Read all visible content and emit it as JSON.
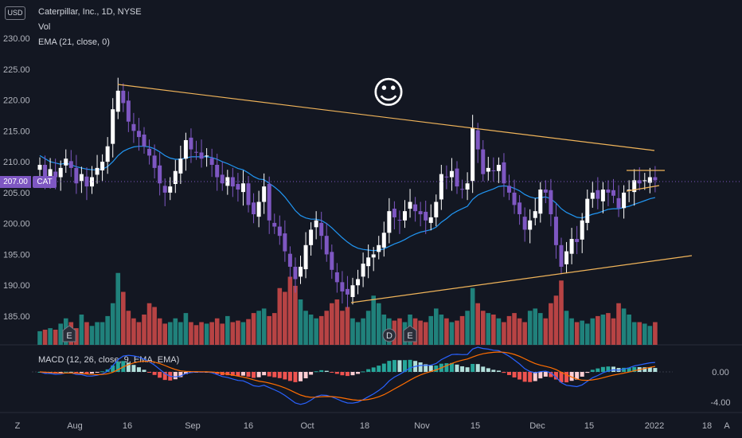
{
  "header": {
    "currency": "USD",
    "title": "Caterpillar, Inc., 1D, NYSE",
    "vol_label": "Vol",
    "ema_label": "EMA (21, close, 0)",
    "macd_label": "MACD (12, 26, close, 9, EMA, EMA)"
  },
  "price_tag": {
    "value": "207.00",
    "symbol": "CAT"
  },
  "price_axis": {
    "labels": [
      "230.00",
      "225.00",
      "220.00",
      "215.00",
      "210.00",
      "205.00",
      "200.00",
      "195.00",
      "190.00",
      "185.00"
    ],
    "values": [
      230,
      225,
      220,
      215,
      210,
      205,
      200,
      195,
      190,
      185
    ]
  },
  "macd_axis": {
    "labels": [
      "0.00",
      "-4.00"
    ],
    "values": [
      0,
      -4
    ]
  },
  "time_axis": {
    "labels": [
      "Aug",
      "16",
      "Sep",
      "16",
      "Oct",
      "18",
      "Nov",
      "15",
      "Dec",
      "15",
      "2022",
      "18"
    ]
  },
  "corner_labels": {
    "left": "Z",
    "right": "A"
  },
  "event_markers": [
    "E",
    "D",
    "E"
  ],
  "emoji": "☺",
  "colors": {
    "up": "#ffffff",
    "down": "#7e57c2",
    "ema": "#2196f3",
    "trend": "#f0b45a",
    "vol_up": "#26a69a",
    "vol_down": "#ef5350",
    "bg": "#131722"
  },
  "chart_data": {
    "type": "candlestick",
    "title": "Caterpillar, Inc., 1D, NYSE",
    "ylim": [
      183,
      232
    ],
    "closes": [
      209.5,
      207.0,
      208.8,
      207.5,
      209.0,
      210.5,
      209.0,
      206.5,
      208.0,
      206.0,
      207.5,
      209.0,
      210.0,
      212.5,
      218.5,
      221.5,
      219.5,
      216.5,
      215.0,
      214.0,
      212.5,
      211.0,
      209.0,
      206.5,
      205.0,
      206.0,
      208.5,
      210.5,
      213.5,
      212.0,
      211.5,
      210.5,
      211.0,
      209.5,
      207.5,
      206.5,
      207.5,
      206.0,
      205.5,
      206.5,
      203.0,
      201.5,
      203.5,
      206.0,
      200.5,
      199.5,
      198.0,
      195.5,
      193.0,
      191.0,
      193.0,
      196.5,
      199.0,
      200.5,
      198.0,
      195.0,
      192.5,
      190.5,
      189.0,
      188.5,
      190.0,
      191.0,
      193.5,
      194.5,
      195.0,
      196.5,
      198.5,
      202.0,
      201.0,
      200.5,
      202.0,
      203.5,
      202.0,
      201.5,
      200.5,
      201.0,
      203.5,
      208.0,
      207.5,
      208.5,
      206.0,
      205.5,
      206.5,
      215.5,
      212.0,
      208.0,
      209.0,
      208.5,
      209.5,
      206.5,
      205.0,
      203.0,
      201.5,
      199.0,
      200.5,
      202.0,
      205.5,
      205.0,
      201.5,
      196.5,
      193.0,
      195.5,
      197.5,
      197.0,
      200.5,
      204.0,
      205.0,
      204.0,
      205.5,
      205.0,
      204.5,
      202.5,
      205.0,
      205.5,
      207.0,
      206.5,
      207.0,
      207.5,
      207.0
    ],
    "x_start_label": "Aug",
    "x_end_label": "2022",
    "series": [
      {
        "name": "EMA (21, close, 0)",
        "values": [
          211.0,
          210.5,
          210.0,
          209.8,
          209.6,
          209.8,
          209.5,
          209.2,
          209.0,
          208.8,
          208.7,
          208.7,
          208.8,
          209.2,
          210.0,
          211.0,
          211.7,
          212.1,
          212.4,
          212.5,
          212.5,
          212.4,
          212.1,
          211.6,
          211.0,
          210.6,
          210.4,
          210.4,
          210.6,
          210.8,
          210.8,
          210.8,
          210.8,
          210.7,
          210.4,
          210.0,
          209.7,
          209.3,
          208.9,
          208.7,
          208.2,
          207.6,
          207.2,
          207.1,
          206.5,
          205.9,
          205.2,
          204.3,
          203.2,
          202.1,
          201.3,
          200.9,
          200.7,
          200.7,
          200.5,
          200.0,
          199.3,
          198.5,
          197.7,
          197.0,
          196.4,
          196.0,
          195.8,
          195.7,
          195.6,
          195.7,
          195.9,
          196.3,
          196.7,
          197.0,
          197.4,
          197.9,
          198.3,
          198.6,
          198.8,
          199.0,
          199.4,
          200.2,
          200.8,
          201.5,
          202.0,
          202.4,
          202.8,
          203.9,
          204.6,
          205.0,
          205.3,
          205.6,
          206.0,
          206.1,
          206.0,
          205.7,
          205.3,
          204.7,
          204.3,
          204.1,
          204.2,
          204.3,
          204.0,
          203.3,
          202.4,
          201.8,
          201.4,
          201.0,
          200.9,
          201.2,
          201.5,
          201.7,
          202.0,
          202.3,
          202.4,
          202.4,
          202.6,
          202.8,
          203.1,
          203.4,
          203.7,
          204.0,
          204.2
        ]
      }
    ],
    "volume_relative": [
      0.18,
      0.2,
      0.22,
      0.2,
      0.28,
      0.35,
      0.3,
      0.22,
      0.4,
      0.3,
      0.25,
      0.3,
      0.3,
      0.38,
      0.55,
      0.95,
      0.7,
      0.45,
      0.35,
      0.3,
      0.4,
      0.55,
      0.5,
      0.35,
      0.28,
      0.3,
      0.35,
      0.3,
      0.42,
      0.3,
      0.26,
      0.3,
      0.28,
      0.3,
      0.35,
      0.28,
      0.38,
      0.3,
      0.32,
      0.3,
      0.34,
      0.42,
      0.45,
      0.48,
      0.38,
      0.42,
      0.75,
      0.7,
      0.9,
      0.78,
      0.6,
      0.45,
      0.4,
      0.35,
      0.38,
      0.45,
      0.55,
      0.6,
      0.45,
      0.5,
      0.35,
      0.3,
      0.35,
      0.45,
      0.65,
      0.55,
      0.4,
      0.35,
      0.32,
      0.35,
      0.3,
      0.4,
      0.35,
      0.32,
      0.3,
      0.38,
      0.48,
      0.4,
      0.35,
      0.3,
      0.32,
      0.38,
      0.45,
      0.75,
      0.55,
      0.45,
      0.42,
      0.4,
      0.35,
      0.3,
      0.38,
      0.42,
      0.35,
      0.3,
      0.45,
      0.48,
      0.42,
      0.35,
      0.55,
      0.65,
      0.85,
      0.45,
      0.35,
      0.3,
      0.32,
      0.28,
      0.35,
      0.38,
      0.4,
      0.42,
      0.35,
      0.55,
      0.48,
      0.4,
      0.3,
      0.3,
      0.28,
      0.25,
      0.3
    ],
    "macd": {
      "ylim": [
        -6,
        2.8
      ]
    }
  }
}
